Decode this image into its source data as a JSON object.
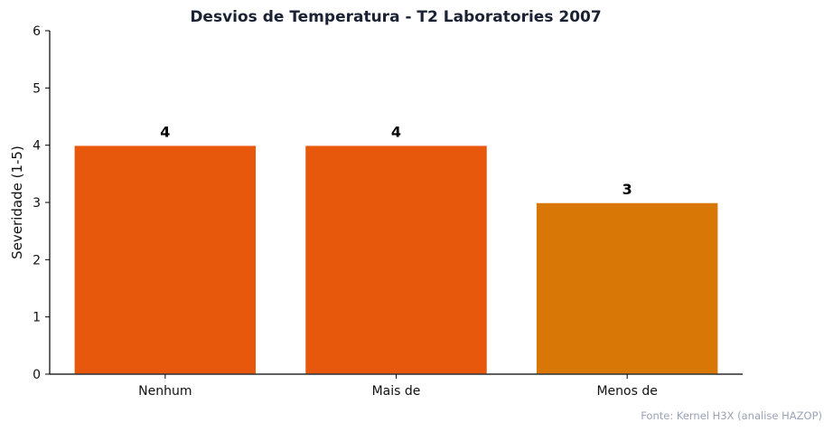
{
  "chart_data": {
    "type": "bar",
    "title": "Desvios de Temperatura - T2 Laboratories 2007",
    "xlabel": "",
    "ylabel": "Severidade (1-5)",
    "categories": [
      "Nenhum",
      "Mais de",
      "Menos de"
    ],
    "values": [
      4,
      4,
      3
    ],
    "data_labels": [
      "4",
      "4",
      "3"
    ],
    "bar_colors": [
      "#E8580C",
      "#E8580C",
      "#D97706"
    ],
    "ylim": [
      0,
      6
    ],
    "yticks": [
      0,
      1,
      2,
      3,
      4,
      5,
      6
    ],
    "grid": false,
    "legend": "none",
    "source_note": "Fonte: Kernel H3X (analise HAZOP)"
  }
}
